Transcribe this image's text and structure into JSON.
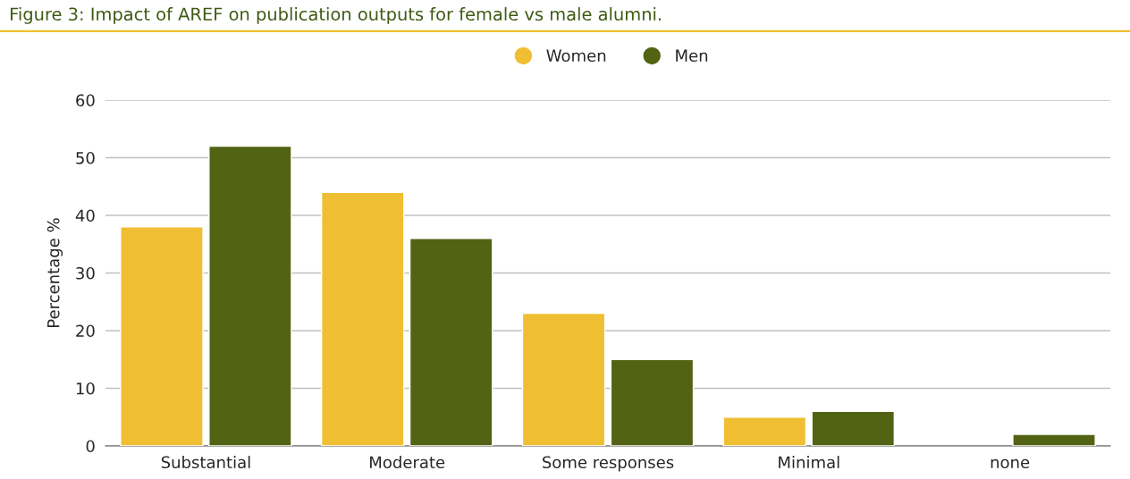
{
  "chart_data": {
    "type": "bar",
    "title": "Figure 3: Impact of AREF on publication outputs for female vs male alumni.",
    "ylabel": "Percentage %",
    "categories": [
      "Substantial",
      "Moderate",
      "Some responses",
      "Minimal",
      "none"
    ],
    "series": [
      {
        "name": "Women",
        "color": "#f0be32",
        "values": [
          38,
          44,
          23,
          5,
          null
        ]
      },
      {
        "name": "Men",
        "color": "#536314",
        "values": [
          52,
          36,
          15,
          6,
          2
        ]
      }
    ],
    "ylim": [
      0,
      60
    ],
    "yticks": [
      0,
      10,
      20,
      30,
      40,
      50,
      60
    ],
    "grid": "y",
    "legend": "top"
  }
}
